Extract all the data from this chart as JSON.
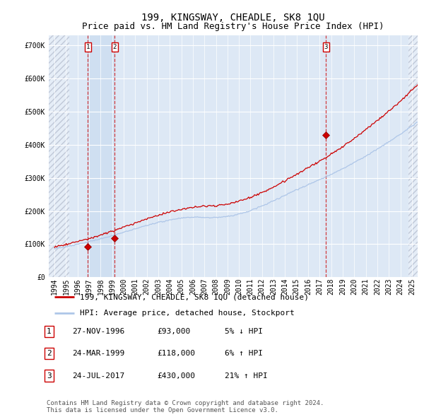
{
  "title": "199, KINGSWAY, CHEADLE, SK8 1QU",
  "subtitle": "Price paid vs. HM Land Registry's House Price Index (HPI)",
  "x_start_year": 1994,
  "x_end_year": 2025,
  "y_ticks": [
    0,
    100000,
    200000,
    300000,
    400000,
    500000,
    600000,
    700000
  ],
  "y_tick_labels": [
    "£0",
    "£100K",
    "£200K",
    "£300K",
    "£400K",
    "£500K",
    "£600K",
    "£700K"
  ],
  "y_max": 730000,
  "hpi_color": "#aec6e8",
  "price_color": "#cc0000",
  "plot_bg": "#dde8f5",
  "grid_color": "#ffffff",
  "hatch_color": "#c0c8d8",
  "sale_dates": [
    1996.9,
    1999.23,
    2017.56
  ],
  "sale_prices": [
    93000,
    118000,
    430000
  ],
  "sale_labels": [
    "1",
    "2",
    "3"
  ],
  "legend_line1": "199, KINGSWAY, CHEADLE, SK8 1QU (detached house)",
  "legend_line2": "HPI: Average price, detached house, Stockport",
  "table_rows": [
    [
      "1",
      "27-NOV-1996",
      "£93,000",
      "5% ↓ HPI"
    ],
    [
      "2",
      "24-MAR-1999",
      "£118,000",
      "6% ↑ HPI"
    ],
    [
      "3",
      "24-JUL-2017",
      "£430,000",
      "21% ↑ HPI"
    ]
  ],
  "footer": "Contains HM Land Registry data © Crown copyright and database right 2024.\nThis data is licensed under the Open Government Licence v3.0.",
  "title_fontsize": 10,
  "subtitle_fontsize": 9,
  "tick_fontsize": 7,
  "legend_fontsize": 8,
  "table_fontsize": 8,
  "footer_fontsize": 6.5
}
